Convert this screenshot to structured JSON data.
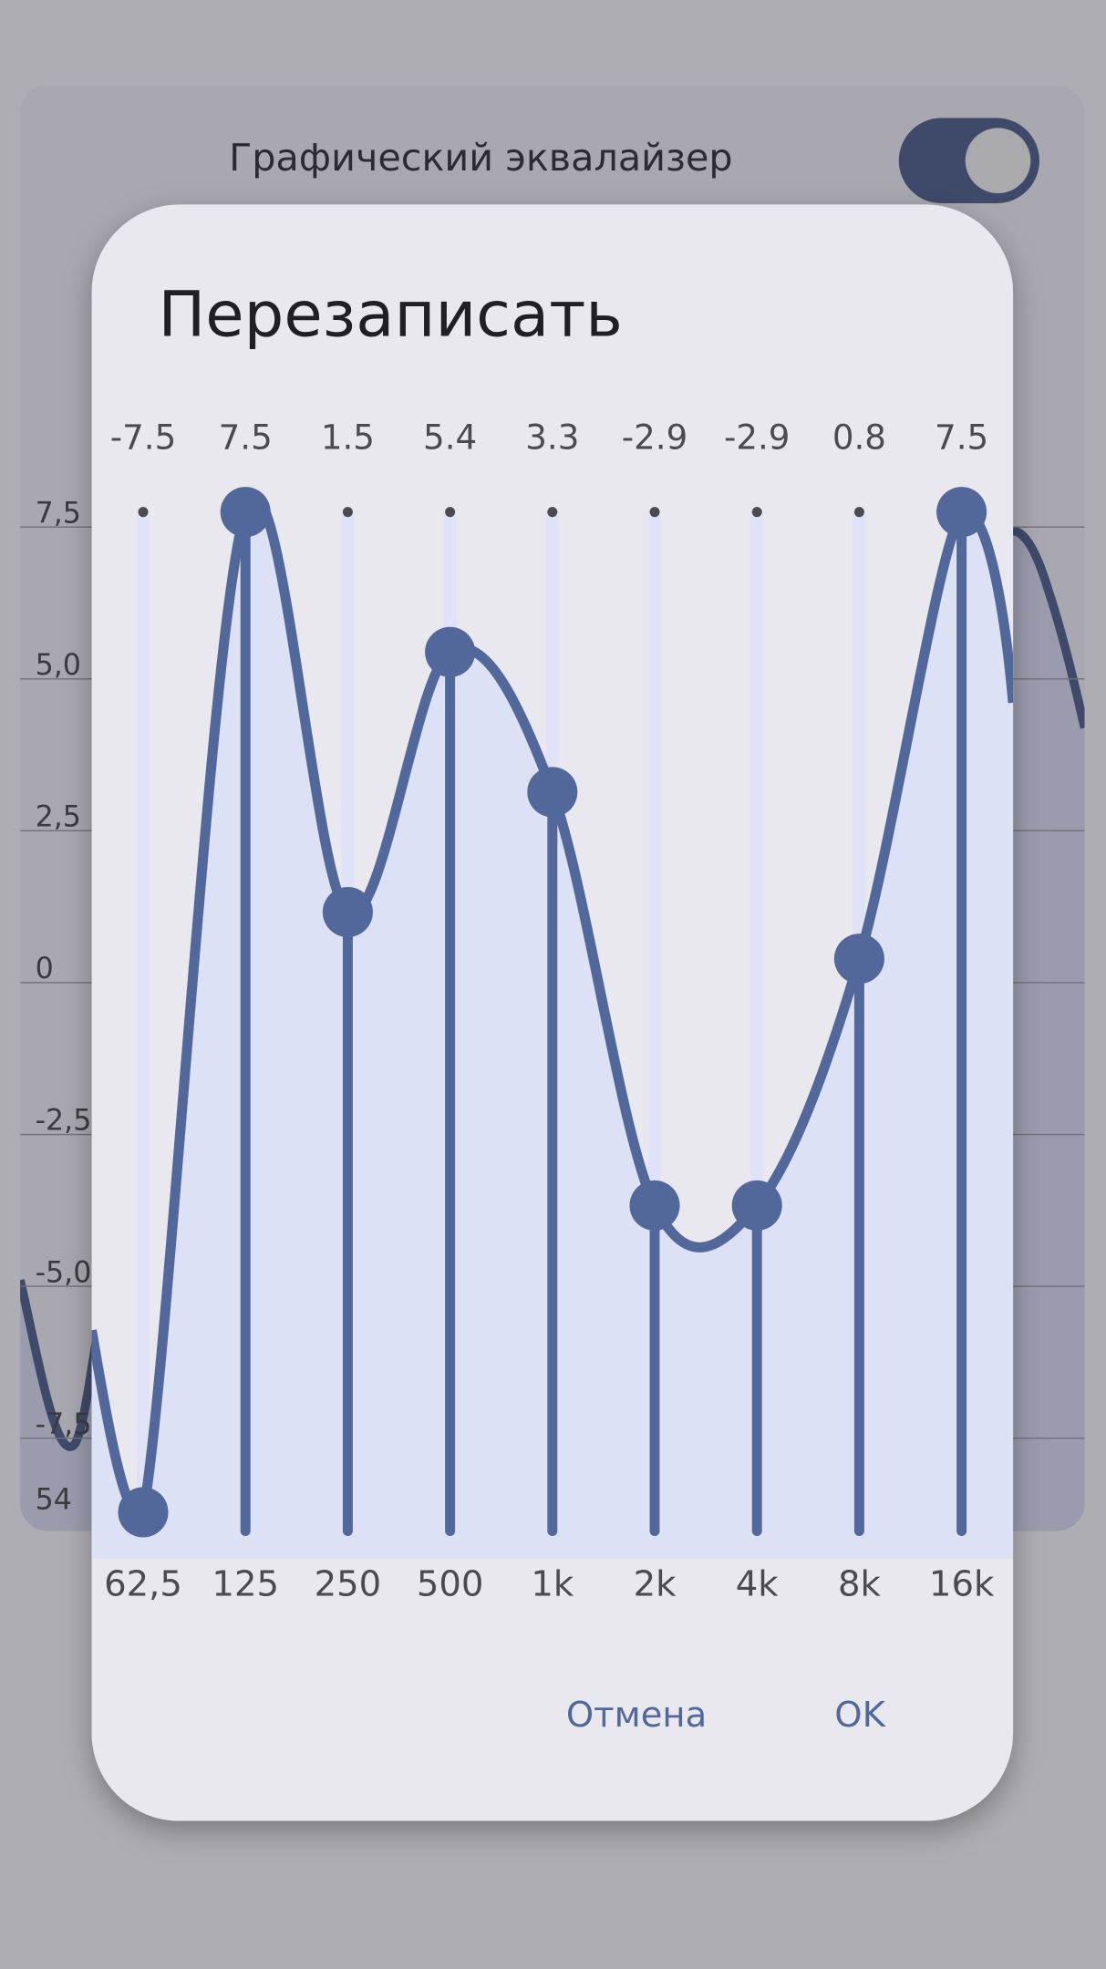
{
  "background": {
    "title": "Графический эквалайзер",
    "yticks": [
      {
        "value": 7.5,
        "label": "7,5"
      },
      {
        "value": 5,
        "label": "5,0"
      },
      {
        "value": 2.5,
        "label": "2,5"
      },
      0,
      {
        "value": -2.5,
        "label": "-2,5"
      },
      {
        "value": -5,
        "label": "-5,0"
      },
      {
        "value": -7.5,
        "label": "-7,5"
      }
    ],
    "bottom_label": "54"
  },
  "dialog": {
    "title": "Перезаписать",
    "cancel": "Отмена",
    "ok": "OK"
  },
  "chart_data": {
    "type": "line",
    "categories": [
      "62,5",
      "125",
      "250",
      "500",
      "1k",
      "2k",
      "4k",
      "8k",
      "16k"
    ],
    "values": [
      -7.5,
      7.5,
      1.5,
      5.4,
      3.3,
      -2.9,
      -2.9,
      0.8,
      7.5
    ],
    "ylim": [
      -7.5,
      7.5
    ],
    "color": "#53689a"
  }
}
